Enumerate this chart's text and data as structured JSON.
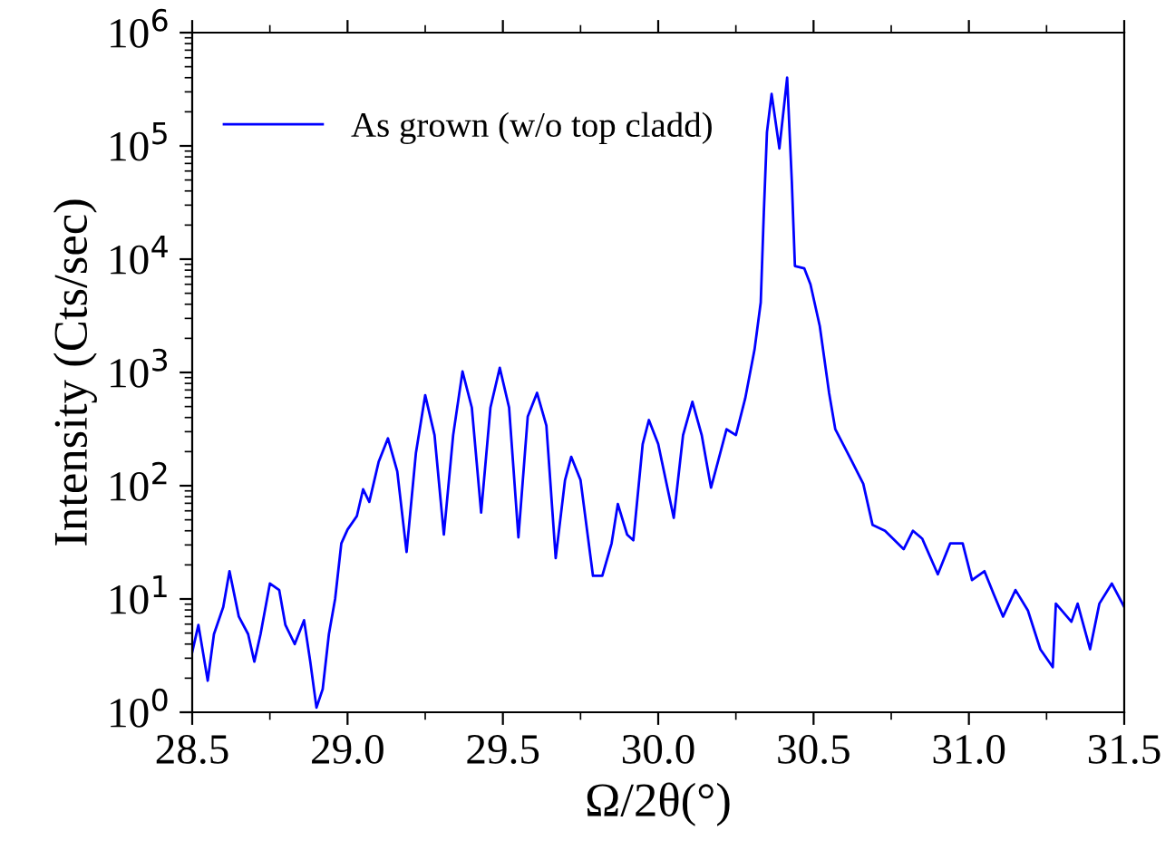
{
  "chart_data": {
    "type": "line",
    "xlabel": "Ω/2θ(°)",
    "ylabel": "Intensity (Cts/sec)",
    "log": "y",
    "grid": false,
    "legend": "top left",
    "marker": "none",
    "line_style": "solid",
    "xlim": [
      28.5,
      31.5
    ],
    "xticks": [
      {
        "value": 28.5,
        "label": "28.5"
      },
      {
        "value": 29.0,
        "label": "29.0"
      },
      {
        "value": 29.5,
        "label": "29.5"
      },
      {
        "value": 30.0,
        "label": "30.0"
      },
      {
        "value": 30.5,
        "label": "30.5"
      },
      {
        "value": 31.0,
        "label": "31.0"
      },
      {
        "value": 31.5,
        "label": "31.5"
      }
    ],
    "ylim": [
      1,
      1000000
    ],
    "yticks": [
      {
        "value": 1,
        "label": "10$^{0}$"
      },
      {
        "value": 10,
        "label": "10$^{1}$"
      },
      {
        "value": 100,
        "label": "10$^{2}$"
      },
      {
        "value": 1000,
        "label": "10$^{3}$"
      },
      {
        "value": 10000,
        "label": "10$^{4}$"
      },
      {
        "value": 100000,
        "label": "10$^{5}$"
      },
      {
        "value": 1000000,
        "label": "10$^{6}$"
      }
    ],
    "series": [
      {
        "name": "As grown (w/o top cladd)",
        "color": "#0000ff",
        "x": [
          28.5,
          28.52,
          28.55,
          28.57,
          28.6,
          28.62,
          28.65,
          28.68,
          28.7,
          28.72,
          28.75,
          28.78,
          28.8,
          28.83,
          28.86,
          28.88,
          28.9,
          28.92,
          28.94,
          28.96,
          28.98,
          29.0,
          29.03,
          29.05,
          29.07,
          29.1,
          29.13,
          29.16,
          29.19,
          29.22,
          29.25,
          29.28,
          29.31,
          29.34,
          29.37,
          29.4,
          29.43,
          29.46,
          29.49,
          29.52,
          29.55,
          29.58,
          29.61,
          29.64,
          29.67,
          29.7,
          29.72,
          29.75,
          29.79,
          29.82,
          29.85,
          29.87,
          29.9,
          29.92,
          29.95,
          29.97,
          30.0,
          30.05,
          30.08,
          30.11,
          30.14,
          30.17,
          30.22,
          30.25,
          30.28,
          30.31,
          30.33,
          30.34,
          30.35,
          30.365,
          30.39,
          30.415,
          30.43,
          30.44,
          30.47,
          30.49,
          30.52,
          30.55,
          30.57,
          30.61,
          30.66,
          30.69,
          30.73,
          30.79,
          30.82,
          30.85,
          30.9,
          30.94,
          30.98,
          31.01,
          31.05,
          31.08,
          31.11,
          31.15,
          31.19,
          31.23,
          31.27,
          31.28,
          31.33,
          31.35,
          31.39,
          31.42,
          31.46,
          31.5
        ],
        "values": [
          3.4,
          5.9,
          1.9,
          4.9,
          8.5,
          17.6,
          7,
          4.9,
          2.8,
          4.9,
          13.7,
          12,
          5.9,
          4,
          6.5,
          2.8,
          1.1,
          1.6,
          4.9,
          10,
          31,
          41,
          54,
          93,
          72,
          162,
          262,
          134,
          26,
          194,
          630,
          280,
          37,
          280,
          1020,
          490,
          58,
          490,
          1100,
          490,
          35,
          407,
          660,
          340,
          23,
          112,
          180,
          112,
          16,
          16,
          31,
          69,
          37,
          33,
          233,
          380,
          233,
          52,
          280,
          550,
          280,
          96,
          315,
          280,
          590,
          1590,
          4150,
          26000,
          132000,
          288000,
          95000,
          400000,
          49000,
          8700,
          8300,
          6000,
          2570,
          660,
          315,
          194,
          104,
          45,
          40,
          27.5,
          40,
          34,
          16.5,
          31,
          31,
          14.7,
          17.6,
          11,
          7,
          12,
          7.9,
          3.6,
          2.5,
          9.1,
          6.3,
          9.1,
          3.6,
          9.1,
          13.7,
          8.5
        ]
      }
    ]
  }
}
